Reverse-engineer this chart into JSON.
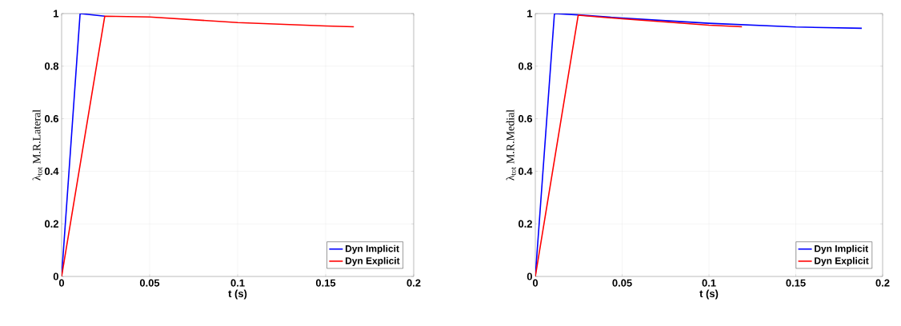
{
  "chart_data": [
    {
      "type": "line",
      "xlabel": "t (s)",
      "ylabel": "λ$_{tot}$ M.R.Lateral",
      "xlim": [
        0,
        0.2
      ],
      "ylim": [
        0,
        1
      ],
      "xticks": [
        0,
        0.05,
        0.1,
        0.15,
        0.2
      ],
      "yticks": [
        0,
        0.2,
        0.4,
        0.6,
        0.8,
        1
      ],
      "grid": true,
      "legend": "bottom right",
      "marker": "none",
      "series": [
        {
          "name": "Dyn Implicit",
          "color": "#0000ff",
          "x": [
            0,
            0.0105,
            0.0245
          ],
          "values": [
            0,
            1,
            0.99
          ]
        },
        {
          "name": "Dyn Explicit",
          "color": "#ff0000",
          "x": [
            0,
            0.0245,
            0.05,
            0.1,
            0.15,
            0.166
          ],
          "values": [
            0,
            0.99,
            0.987,
            0.966,
            0.953,
            0.95
          ]
        }
      ]
    },
    {
      "type": "line",
      "xlabel": "t (s)",
      "ylabel": "λ$_{tot}$ M.R.Medial",
      "xlim": [
        0,
        0.2
      ],
      "ylim": [
        0,
        1
      ],
      "xticks": [
        0,
        0.05,
        0.1,
        0.15,
        0.2
      ],
      "yticks": [
        0,
        0.2,
        0.4,
        0.6,
        0.8,
        1
      ],
      "grid": true,
      "legend": "bottom right",
      "marker": "none",
      "series": [
        {
          "name": "Dyn Implicit",
          "color": "#0000ff",
          "x": [
            0,
            0.011,
            0.0247,
            0.05,
            0.1,
            0.15,
            0.188
          ],
          "values": [
            0,
            1,
            0.995,
            0.983,
            0.963,
            0.949,
            0.944
          ]
        },
        {
          "name": "Dyn Explicit",
          "color": "#ff0000",
          "x": [
            0,
            0.0247,
            0.05,
            0.1,
            0.119
          ],
          "values": [
            0,
            0.994,
            0.98,
            0.956,
            0.95
          ]
        }
      ]
    }
  ]
}
